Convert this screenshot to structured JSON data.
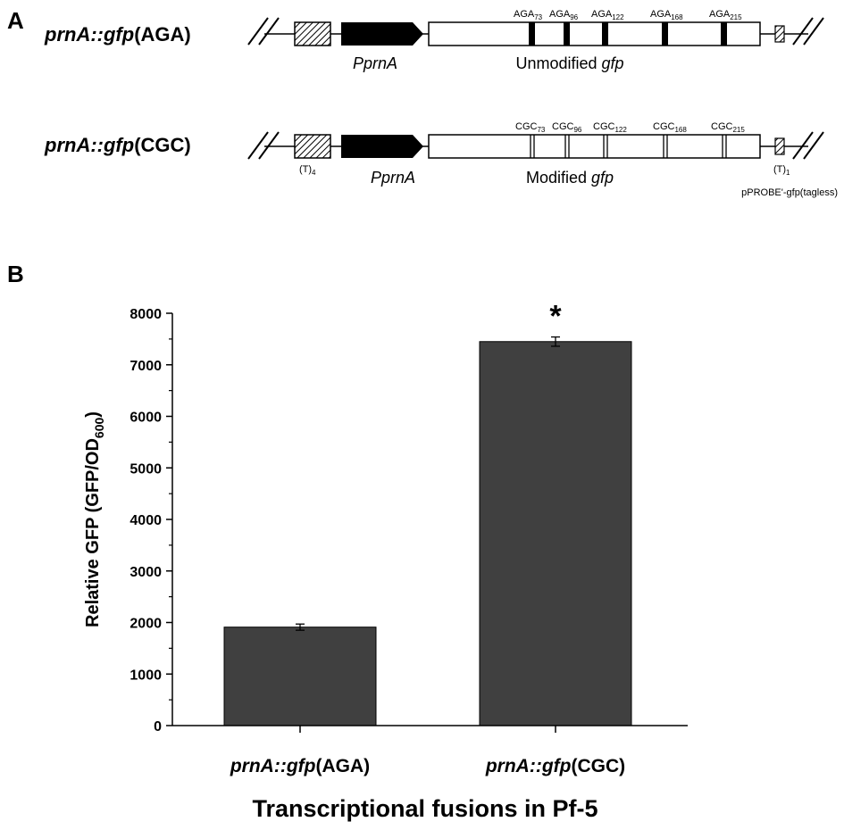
{
  "panelA": {
    "letter": "A",
    "construct1": {
      "name_italic": "prnA::gfp",
      "name_suffix": "(AGA)",
      "promoter": "PprnA",
      "gene_prefix": "Unmodified ",
      "gene_italic": "gfp",
      "codons": [
        {
          "base": "AGA",
          "sub": "73"
        },
        {
          "base": "AGA",
          "sub": "96"
        },
        {
          "base": "AGA",
          "sub": "122"
        },
        {
          "base": "AGA",
          "sub": "168"
        },
        {
          "base": "AGA",
          "sub": "215"
        }
      ]
    },
    "construct2": {
      "name_italic": "prnA::gfp",
      "name_suffix": "(CGC)",
      "promoter": "PprnA",
      "gene_prefix": "Modified ",
      "gene_italic": "gfp",
      "codons": [
        {
          "base": "CGC",
          "sub": "73"
        },
        {
          "base": "CGC",
          "sub": "96"
        },
        {
          "base": "CGC",
          "sub": "122"
        },
        {
          "base": "CGC",
          "sub": "168"
        },
        {
          "base": "CGC",
          "sub": "215"
        }
      ],
      "terminator_left": {
        "base": "(T)",
        "sub": "4"
      },
      "terminator_right": {
        "base": "(T)",
        "sub": "1"
      },
      "plasmid": "pPROBE'-gfp(tagless)"
    }
  },
  "panelB": {
    "letter": "B",
    "significance": "*"
  },
  "chart_data": {
    "type": "bar",
    "categories": [
      {
        "italic": "prnA::gfp",
        "suffix": "(AGA)"
      },
      {
        "italic": "prnA::gfp",
        "suffix": "(CGC)"
      }
    ],
    "values": [
      1910,
      7450
    ],
    "errors": [
      60,
      90
    ],
    "ylabel": "Relative GFP (GFP/OD",
    "ylabel_sub": "600",
    "ylabel_close": ")",
    "xlabel": "Transcriptional fusions in Pf-5",
    "ylim": [
      0,
      8000
    ],
    "yticks": [
      0,
      1000,
      2000,
      3000,
      4000,
      5000,
      6000,
      7000,
      8000
    ],
    "bar_color": "#404040"
  }
}
